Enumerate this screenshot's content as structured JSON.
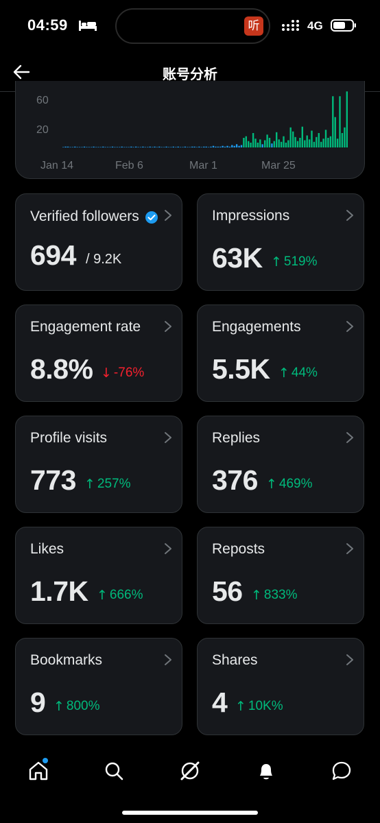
{
  "status_bar": {
    "time": "04:59",
    "network": "4G",
    "island_app": "听"
  },
  "header": {
    "title": "账号分析"
  },
  "chart_data": {
    "type": "bar",
    "y_ticks": [
      "60",
      "20"
    ],
    "x_ticks": [
      "Jan 14",
      "Feb 6",
      "Mar 1",
      "Mar 25"
    ],
    "values": [
      0,
      1,
      1,
      0,
      0,
      1,
      0,
      0,
      0,
      1,
      0,
      0,
      0,
      1,
      0,
      0,
      0,
      1,
      0,
      0,
      0,
      1,
      0,
      0,
      0,
      1,
      0,
      0,
      0,
      1,
      0,
      1,
      0,
      0,
      1,
      0,
      0,
      1,
      0,
      1,
      0,
      1,
      0,
      0,
      1,
      0,
      0,
      1,
      0,
      1,
      0,
      0,
      1,
      0,
      0,
      1,
      1,
      0,
      1,
      0,
      1,
      1,
      0,
      1,
      2,
      1,
      1,
      1,
      2,
      1,
      2,
      1,
      3,
      2,
      4,
      2,
      3,
      12,
      14,
      8,
      6,
      18,
      11,
      6,
      10,
      4,
      9,
      16,
      12,
      5,
      8,
      19,
      10,
      7,
      14,
      6,
      9,
      25,
      20,
      13,
      8,
      12,
      26,
      9,
      15,
      10,
      21,
      7,
      13,
      18,
      7,
      11,
      22,
      12,
      14,
      64,
      38,
      11,
      64,
      18,
      25,
      70
    ]
  },
  "metrics": [
    {
      "label": "Verified followers",
      "value": "694",
      "sub": "/ 9.2K"
    },
    {
      "label": "Impressions",
      "value": "63K",
      "change": "519%",
      "direction": "up"
    },
    {
      "label": "Engagement rate",
      "value": "8.8%",
      "change": "-76%",
      "direction": "down"
    },
    {
      "label": "Engagements",
      "value": "5.5K",
      "change": "44%",
      "direction": "up"
    },
    {
      "label": "Profile visits",
      "value": "773",
      "change": "257%",
      "direction": "up"
    },
    {
      "label": "Replies",
      "value": "376",
      "change": "469%",
      "direction": "up"
    },
    {
      "label": "Likes",
      "value": "1.7K",
      "change": "666%",
      "direction": "up"
    },
    {
      "label": "Reposts",
      "value": "56",
      "change": "833%",
      "direction": "up"
    },
    {
      "label": "Bookmarks",
      "value": "9",
      "change": "800%",
      "direction": "up"
    },
    {
      "label": "Shares",
      "value": "4",
      "change": "10K%",
      "direction": "up"
    }
  ],
  "arrows": {
    "up": "↑",
    "down": "↓"
  },
  "colors": {
    "accent": "#1d9bf0",
    "positive": "#00ba7c",
    "negative": "#f4212e",
    "bar": "#00ba7c",
    "bar_low": "#1d9bf0"
  },
  "nav": [
    "home-icon",
    "search-icon",
    "grok-icon",
    "notifications-icon",
    "messages-icon"
  ]
}
